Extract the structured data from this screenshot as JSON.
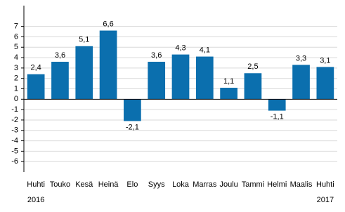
{
  "chart_data": {
    "type": "bar",
    "categories": [
      "Huhti",
      "Touko",
      "Kesä",
      "Heinä",
      "Elo",
      "Syys",
      "Loka",
      "Marras",
      "Joulu",
      "Tammi",
      "Helmi",
      "Maalis",
      "Huhti"
    ],
    "x_sublabels": [
      "2016",
      null,
      null,
      null,
      null,
      null,
      null,
      null,
      null,
      null,
      null,
      null,
      "2017"
    ],
    "values": [
      2.4,
      3.6,
      5.1,
      6.6,
      -2.1,
      3.6,
      4.3,
      4.1,
      1.1,
      2.5,
      -1.1,
      3.3,
      3.1
    ],
    "value_labels": [
      "2,4",
      "3,6",
      "5,1",
      "6,6",
      "-2,1",
      "3,6",
      "4,3",
      "4,1",
      "1,1",
      "2,5",
      "-1,1",
      "3,3",
      "3,1"
    ],
    "color": "#0b6fae",
    "ylim": [
      -7,
      9
    ],
    "yticks": [
      -6,
      -5,
      -4,
      -3,
      -2,
      -1,
      0,
      1,
      2,
      3,
      4,
      5,
      6,
      7
    ],
    "grid": true
  }
}
